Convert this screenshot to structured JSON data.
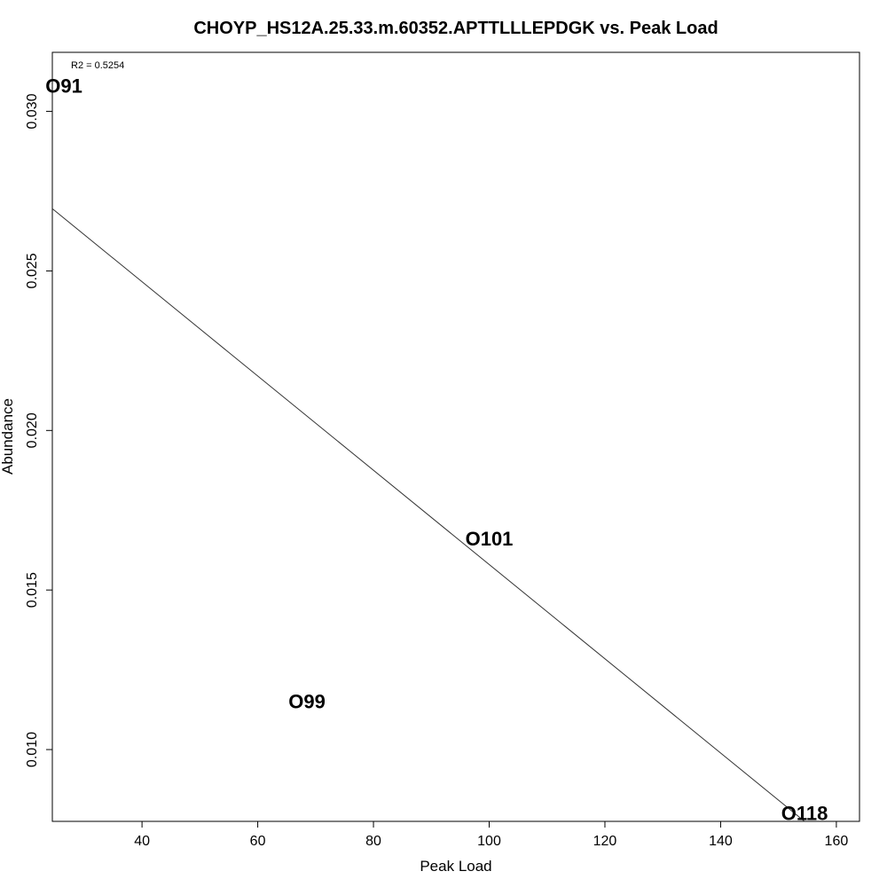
{
  "chart_data": {
    "type": "scatter",
    "title": "CHOYP_HS12A.25.33.m.60352.APTTLLLEPDGK vs. Peak Load",
    "xlabel": "Peak Load",
    "ylabel": "Abundance",
    "xlim": [
      24.5,
      164
    ],
    "ylim": [
      0.00775,
      0.03185
    ],
    "x_ticks": [
      40,
      60,
      80,
      100,
      120,
      140,
      160
    ],
    "y_ticks": [
      0.01,
      0.015,
      0.02,
      0.025,
      0.03
    ],
    "x_tick_labels": [
      "40",
      "60",
      "80",
      "100",
      "120",
      "140",
      "160"
    ],
    "y_tick_labels": [
      "0.010",
      "0.015",
      "0.020",
      "0.025",
      "0.030"
    ],
    "points": [
      {
        "label": "O91",
        "x": 26.5,
        "y": 0.0308
      },
      {
        "label": "O101",
        "x": 100,
        "y": 0.0166
      },
      {
        "label": "O99",
        "x": 68.5,
        "y": 0.0115
      },
      {
        "label": "O118",
        "x": 154.5,
        "y": 0.008
      }
    ],
    "regression_line": {
      "x": [
        24.5,
        154.5
      ],
      "y": [
        0.02695,
        0.00775
      ]
    },
    "annotation": "R2 = 0.5254",
    "grid": false,
    "line_color": "#333333",
    "text_color": "#000000"
  }
}
